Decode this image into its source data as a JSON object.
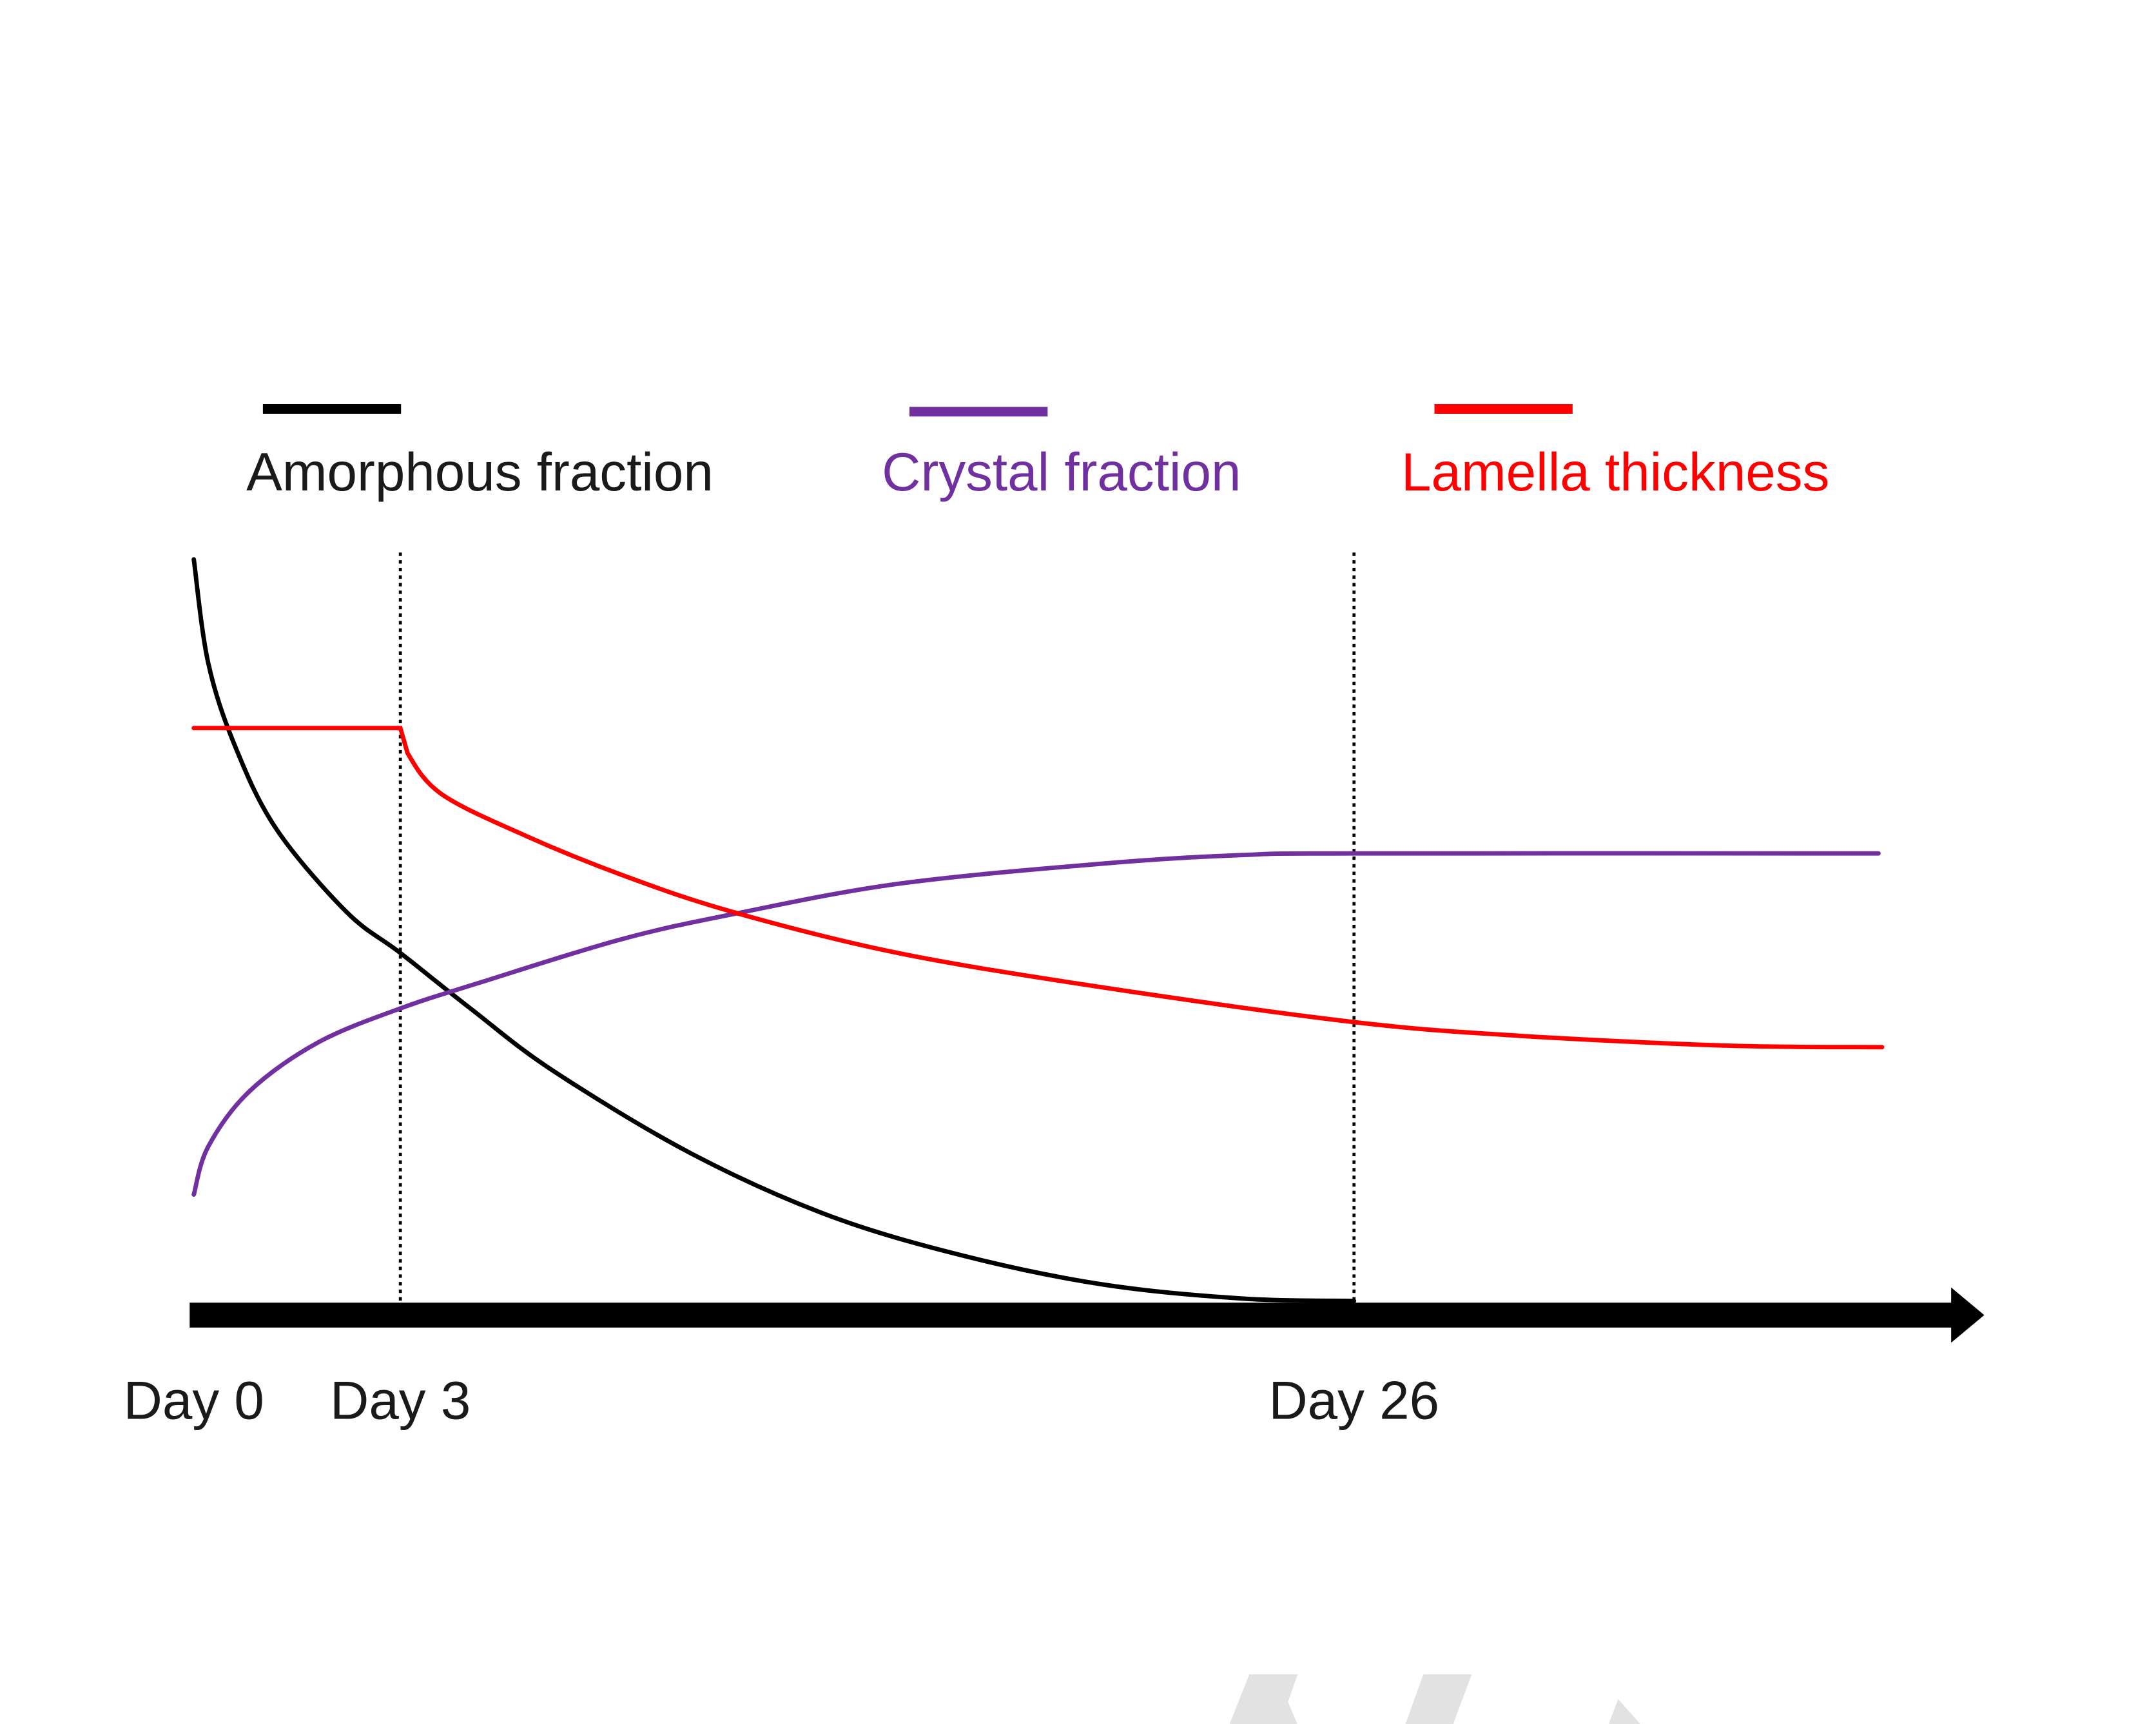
{
  "chart_data": {
    "type": "line",
    "title": "",
    "xlabel": "",
    "ylabel": "",
    "x_units": "schematic time (arbitrary units, Day 0 = 0)",
    "y_units": "arbitrary units",
    "xlim": [
      0,
      100
    ],
    "ylim": [
      0,
      100
    ],
    "grid": false,
    "legend_placement": "top",
    "x_ticks": [
      {
        "label": "Day 0",
        "x": 0,
        "marker_line": false
      },
      {
        "label": "Day 3",
        "x": 11.5,
        "marker_line": true
      },
      {
        "label": "Day 26",
        "x": 64.6,
        "marker_line": true
      }
    ],
    "series": [
      {
        "name": "Amorphous fraction",
        "color": "#000000",
        "x": [
          0,
          0.8,
          2.3,
          4.6,
          8.5,
          11.5,
          15.4,
          20,
          27.7,
          35.4,
          43.1,
          50.8,
          58.5,
          64.6
        ],
        "y": [
          99.1,
          85.5,
          74.5,
          63.6,
          52.7,
          47.3,
          40,
          31.8,
          20.9,
          12.7,
          7.3,
          3.6,
          1.8,
          1.5
        ]
      },
      {
        "name": "Crystal fraction",
        "color": "#7030a0",
        "x": [
          0,
          0.8,
          3.1,
          6.9,
          11.5,
          16.2,
          23.8,
          30,
          39.2,
          50.8,
          58.5,
          64.6,
          93.8
        ],
        "y": [
          15.5,
          21.8,
          29.1,
          35.5,
          40,
          43.6,
          49.1,
          52.4,
          56.4,
          59.1,
          60.2,
          60.4,
          60.4
        ]
      },
      {
        "name": "Lamella thickness",
        "color": "#ff0000",
        "x": [
          0,
          11.5,
          11.9,
          13.8,
          18.5,
          23.8,
          30,
          39.2,
          50.8,
          64.6,
          73.8,
          85.4,
          94
        ],
        "y": [
          76.9,
          76.9,
          73.6,
          68.2,
          62.7,
          57.6,
          52.7,
          47.3,
          42.7,
          38.2,
          36.4,
          35.1,
          34.9
        ]
      }
    ]
  }
}
